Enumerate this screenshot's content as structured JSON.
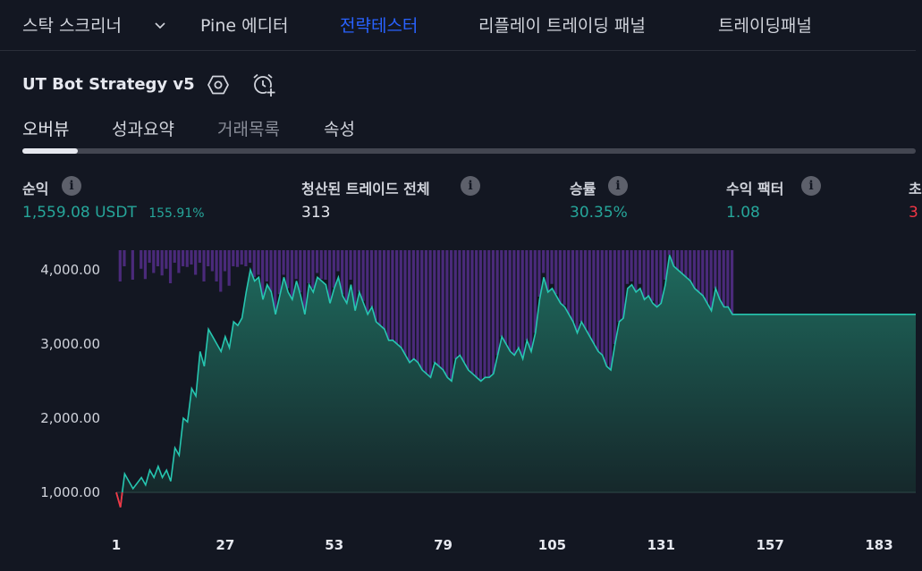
{
  "nav": {
    "tabs": [
      {
        "label": "스탁 스크리너",
        "x": 25
      },
      {
        "label": "Pine 에디터",
        "x": 224
      },
      {
        "label": "전략테스터",
        "x": 380,
        "active": true
      },
      {
        "label": "리플레이 트레이딩 패널",
        "x": 535
      },
      {
        "label": "트레이딩패널",
        "x": 803
      }
    ]
  },
  "strategy": {
    "title": "UT Bot Strategy v5"
  },
  "subtabs": [
    "오버뷰",
    "성과요약",
    "거래목록",
    "속성"
  ],
  "metrics": [
    {
      "label": "순익",
      "value": "1,559.08 USDT",
      "extra": "155.91%",
      "color": "green"
    },
    {
      "label": "청산된 트레이드 전체",
      "value": "313",
      "color": "white"
    },
    {
      "label": "승률",
      "value": "30.35%",
      "color": "green"
    },
    {
      "label": "수익 팩터",
      "value": "1.08",
      "color": "green"
    },
    {
      "label": "초",
      "value": "3",
      "color": "red"
    }
  ],
  "info_glyph": "i",
  "chart_data": {
    "type": "area",
    "y_ticks": [
      "4,000.00",
      "3,000.00",
      "2,000.00",
      "1,000.00"
    ],
    "y_tick_values": [
      4000,
      3000,
      2000,
      1000
    ],
    "x_ticks": [
      "1",
      "27",
      "53",
      "79",
      "105",
      "131",
      "157",
      "183"
    ],
    "x_tick_values": [
      1,
      27,
      53,
      79,
      105,
      131,
      157,
      183
    ],
    "ylim": [
      750,
      4250
    ],
    "xlim": [
      1,
      200
    ],
    "baseline": 1000,
    "equity": [
      [
        1,
        1000
      ],
      [
        2,
        800
      ],
      [
        3,
        1250
      ],
      [
        5,
        1050
      ],
      [
        7,
        1200
      ],
      [
        8,
        1100
      ],
      [
        9,
        1300
      ],
      [
        10,
        1200
      ],
      [
        11,
        1350
      ],
      [
        12,
        1200
      ],
      [
        13,
        1300
      ],
      [
        14,
        1150
      ],
      [
        15,
        1600
      ],
      [
        16,
        1500
      ],
      [
        17,
        2000
      ],
      [
        18,
        1950
      ],
      [
        19,
        2400
      ],
      [
        20,
        2300
      ],
      [
        21,
        2900
      ],
      [
        22,
        2700
      ],
      [
        23,
        3200
      ],
      [
        24,
        3100
      ],
      [
        25,
        3000
      ],
      [
        26,
        2900
      ],
      [
        27,
        3100
      ],
      [
        28,
        2950
      ],
      [
        29,
        3300
      ],
      [
        30,
        3250
      ],
      [
        31,
        3350
      ],
      [
        32,
        3700
      ],
      [
        33,
        4000
      ],
      [
        34,
        3850
      ],
      [
        35,
        3900
      ],
      [
        36,
        3600
      ],
      [
        37,
        3800
      ],
      [
        38,
        3700
      ],
      [
        39,
        3400
      ],
      [
        40,
        3650
      ],
      [
        41,
        3900
      ],
      [
        42,
        3700
      ],
      [
        43,
        3600
      ],
      [
        44,
        3850
      ],
      [
        45,
        3650
      ],
      [
        46,
        3400
      ],
      [
        47,
        3800
      ],
      [
        48,
        3700
      ],
      [
        49,
        3900
      ],
      [
        50,
        3850
      ],
      [
        51,
        3800
      ],
      [
        52,
        3550
      ],
      [
        53,
        3750
      ],
      [
        54,
        3900
      ],
      [
        55,
        3650
      ],
      [
        56,
        3550
      ],
      [
        57,
        3800
      ],
      [
        58,
        3450
      ],
      [
        59,
        3700
      ],
      [
        60,
        3550
      ],
      [
        61,
        3400
      ],
      [
        62,
        3500
      ],
      [
        63,
        3300
      ],
      [
        64,
        3250
      ],
      [
        65,
        3200
      ],
      [
        66,
        3050
      ],
      [
        67,
        3050
      ],
      [
        68,
        3000
      ],
      [
        69,
        2950
      ],
      [
        70,
        2850
      ],
      [
        71,
        2750
      ],
      [
        72,
        2800
      ],
      [
        73,
        2750
      ],
      [
        74,
        2650
      ],
      [
        75,
        2600
      ],
      [
        76,
        2550
      ],
      [
        77,
        2750
      ],
      [
        78,
        2700
      ],
      [
        79,
        2650
      ],
      [
        80,
        2550
      ],
      [
        81,
        2500
      ],
      [
        82,
        2800
      ],
      [
        83,
        2850
      ],
      [
        84,
        2750
      ],
      [
        85,
        2650
      ],
      [
        86,
        2600
      ],
      [
        87,
        2550
      ],
      [
        88,
        2500
      ],
      [
        89,
        2550
      ],
      [
        90,
        2550
      ],
      [
        91,
        2600
      ],
      [
        92,
        2850
      ],
      [
        93,
        3100
      ],
      [
        94,
        3000
      ],
      [
        95,
        2900
      ],
      [
        96,
        2850
      ],
      [
        97,
        2950
      ],
      [
        98,
        2800
      ],
      [
        99,
        3050
      ],
      [
        100,
        2900
      ],
      [
        101,
        3150
      ],
      [
        102,
        3600
      ],
      [
        103,
        3900
      ],
      [
        104,
        3700
      ],
      [
        105,
        3750
      ],
      [
        106,
        3650
      ],
      [
        107,
        3550
      ],
      [
        108,
        3500
      ],
      [
        109,
        3400
      ],
      [
        110,
        3300
      ],
      [
        111,
        3150
      ],
      [
        112,
        3300
      ],
      [
        113,
        3200
      ],
      [
        114,
        3100
      ],
      [
        115,
        3000
      ],
      [
        116,
        2900
      ],
      [
        117,
        2850
      ],
      [
        118,
        2700
      ],
      [
        119,
        2650
      ],
      [
        120,
        3000
      ],
      [
        121,
        3300
      ],
      [
        122,
        3350
      ],
      [
        123,
        3750
      ],
      [
        124,
        3800
      ],
      [
        125,
        3700
      ],
      [
        126,
        3750
      ],
      [
        127,
        3600
      ],
      [
        128,
        3650
      ],
      [
        129,
        3550
      ],
      [
        130,
        3500
      ],
      [
        131,
        3550
      ],
      [
        132,
        3800
      ],
      [
        133,
        4200
      ],
      [
        134,
        4050
      ],
      [
        135,
        4000
      ],
      [
        136,
        3950
      ],
      [
        137,
        3900
      ],
      [
        138,
        3850
      ],
      [
        139,
        3750
      ],
      [
        140,
        3700
      ],
      [
        141,
        3650
      ],
      [
        142,
        3550
      ],
      [
        143,
        3450
      ],
      [
        144,
        3750
      ],
      [
        145,
        3600
      ],
      [
        146,
        3500
      ],
      [
        147,
        3500
      ],
      [
        148,
        3400
      ]
    ]
  }
}
